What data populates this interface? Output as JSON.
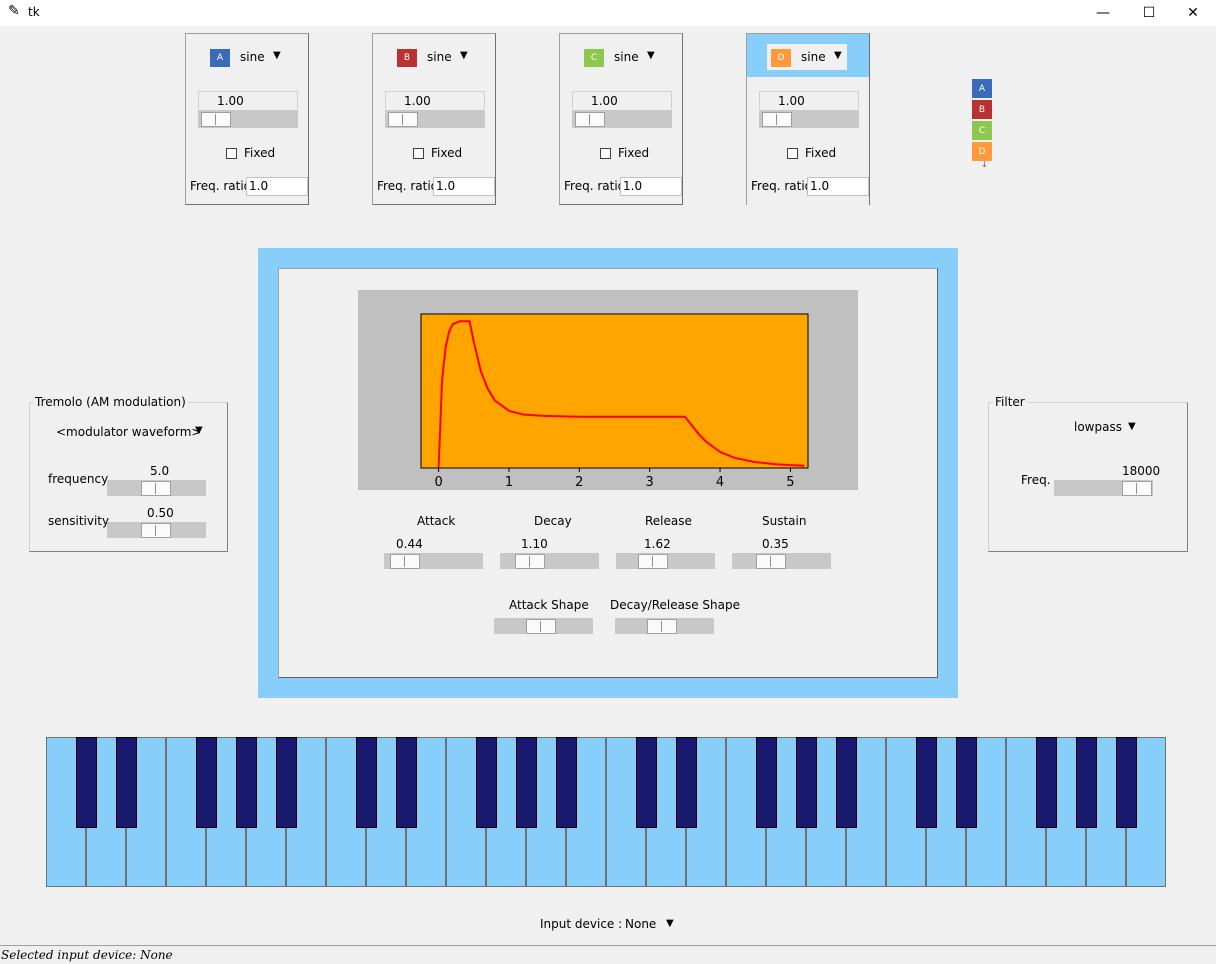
{
  "window": {
    "title": "tk"
  },
  "operators": [
    {
      "label": "A",
      "color": "#3a6bb8",
      "waveform": "sine",
      "amplitude": "1.00",
      "fixed_label": "Fixed",
      "freq_ratio_label": "Freq. ratio",
      "freq_ratio": "1.0"
    },
    {
      "label": "B",
      "color": "#b83232",
      "waveform": "sine",
      "amplitude": "1.00",
      "fixed_label": "Fixed",
      "freq_ratio_label": "Freq. ratio",
      "freq_ratio": "1.0"
    },
    {
      "label": "C",
      "color": "#8dc84e",
      "waveform": "sine",
      "amplitude": "1.00",
      "fixed_label": "Fixed",
      "freq_ratio_label": "Freq. ratio",
      "freq_ratio": "1.0"
    },
    {
      "label": "D",
      "color": "#ff9a3c",
      "waveform": "sine",
      "amplitude": "1.00",
      "fixed_label": "Fixed",
      "freq_ratio_label": "Freq. ratio",
      "freq_ratio": "1.0"
    }
  ],
  "algorithm": [
    "A",
    "B",
    "C",
    "D"
  ],
  "envelope": {
    "attack_label": "Attack",
    "attack": "0.44",
    "decay_label": "Decay",
    "decay": "1.10",
    "release_label": "Release",
    "release": "1.62",
    "sustain_label": "Sustain",
    "sustain": "0.35",
    "attack_shape_label": "Attack Shape",
    "decay_release_shape_label": "Decay/Release Shape"
  },
  "chart_data": {
    "type": "line",
    "x_ticks": [
      "0",
      "1",
      "2",
      "3",
      "4",
      "5"
    ],
    "xlim": [
      -0.25,
      5.25
    ],
    "ylim": [
      0,
      1.05
    ],
    "background": "#ffa500",
    "line_color": "#ff0000",
    "x": [
      0,
      0.05,
      0.1,
      0.15,
      0.2,
      0.3,
      0.44,
      0.5,
      0.6,
      0.7,
      0.8,
      1.0,
      1.2,
      1.5,
      2.0,
      2.5,
      3.0,
      3.5,
      3.6,
      3.7,
      3.8,
      4.0,
      4.2,
      4.5,
      4.8,
      5.0,
      5.2
    ],
    "y": [
      0,
      0.6,
      0.82,
      0.93,
      0.98,
      1.0,
      1.0,
      0.86,
      0.66,
      0.54,
      0.46,
      0.39,
      0.365,
      0.355,
      0.35,
      0.35,
      0.35,
      0.35,
      0.29,
      0.23,
      0.18,
      0.11,
      0.07,
      0.04,
      0.025,
      0.02,
      0.015
    ]
  },
  "tremolo": {
    "title": "Tremolo (AM modulation)",
    "waveform": "<modulator waveform>",
    "frequency_label": "frequency",
    "frequency": "5.0",
    "sensitivity_label": "sensitivity",
    "sensitivity": "0.50"
  },
  "filter": {
    "title": "Filter",
    "type": "lowpass",
    "freq_label": "Freq.",
    "freq": "18000"
  },
  "input": {
    "label": "Input device :",
    "value": "None"
  },
  "status": "Selected input device: None",
  "colors": {
    "highlight": "#87cefa",
    "white_key": "#87cefa",
    "black_key": "#191970",
    "plot_bg": "#ffa500"
  }
}
